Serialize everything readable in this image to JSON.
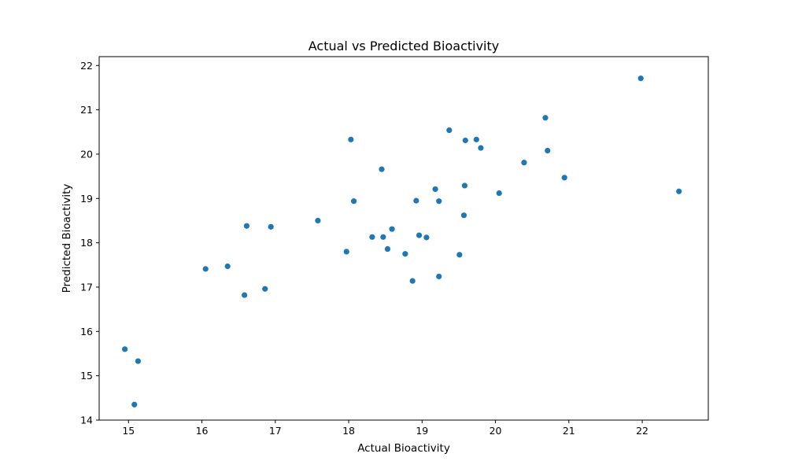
{
  "chart_data": {
    "type": "scatter",
    "title": "Actual vs Predicted Bioactivity",
    "xlabel": "Actual Bioactivity",
    "ylabel": "Predicted Bioactivity",
    "xlim": [
      14.6,
      22.9
    ],
    "ylim": [
      14.0,
      22.2
    ],
    "xticks": [
      15,
      16,
      17,
      18,
      19,
      20,
      21,
      22
    ],
    "yticks": [
      14,
      15,
      16,
      17,
      18,
      19,
      20,
      21,
      22
    ],
    "grid": false,
    "marker_color": "#1f77b4",
    "points": [
      {
        "x": 14.95,
        "y": 15.6
      },
      {
        "x": 15.13,
        "y": 15.33
      },
      {
        "x": 15.08,
        "y": 14.35
      },
      {
        "x": 16.05,
        "y": 17.41
      },
      {
        "x": 16.35,
        "y": 17.47
      },
      {
        "x": 16.61,
        "y": 18.38
      },
      {
        "x": 16.58,
        "y": 16.82
      },
      {
        "x": 16.86,
        "y": 16.96
      },
      {
        "x": 16.94,
        "y": 18.36
      },
      {
        "x": 17.58,
        "y": 18.5
      },
      {
        "x": 17.97,
        "y": 17.8
      },
      {
        "x": 18.03,
        "y": 20.33
      },
      {
        "x": 18.07,
        "y": 18.94
      },
      {
        "x": 18.32,
        "y": 18.13
      },
      {
        "x": 18.45,
        "y": 19.66
      },
      {
        "x": 18.47,
        "y": 18.13
      },
      {
        "x": 18.53,
        "y": 17.86
      },
      {
        "x": 18.59,
        "y": 18.31
      },
      {
        "x": 18.77,
        "y": 17.75
      },
      {
        "x": 18.87,
        "y": 17.14
      },
      {
        "x": 18.92,
        "y": 18.95
      },
      {
        "x": 18.96,
        "y": 18.17
      },
      {
        "x": 19.06,
        "y": 18.12
      },
      {
        "x": 19.18,
        "y": 19.21
      },
      {
        "x": 19.23,
        "y": 18.94
      },
      {
        "x": 19.23,
        "y": 17.24
      },
      {
        "x": 19.37,
        "y": 20.54
      },
      {
        "x": 19.51,
        "y": 17.73
      },
      {
        "x": 19.57,
        "y": 18.62
      },
      {
        "x": 19.58,
        "y": 19.29
      },
      {
        "x": 19.59,
        "y": 20.31
      },
      {
        "x": 19.74,
        "y": 20.33
      },
      {
        "x": 19.8,
        "y": 20.14
      },
      {
        "x": 20.05,
        "y": 19.12
      },
      {
        "x": 20.39,
        "y": 19.81
      },
      {
        "x": 20.68,
        "y": 20.82
      },
      {
        "x": 20.71,
        "y": 20.08
      },
      {
        "x": 20.94,
        "y": 19.47
      },
      {
        "x": 21.98,
        "y": 21.71
      },
      {
        "x": 22.5,
        "y": 19.16
      }
    ]
  }
}
